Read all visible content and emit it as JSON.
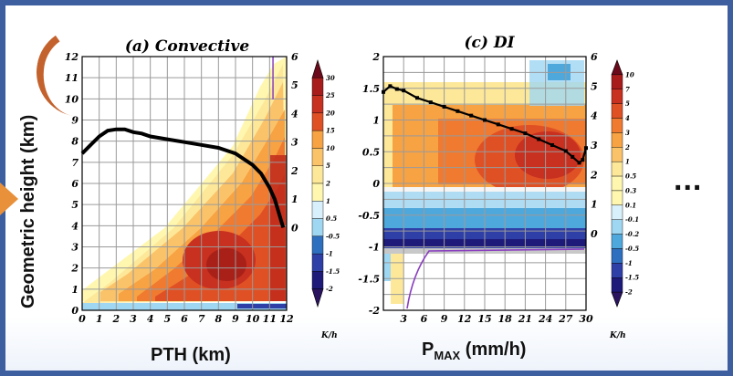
{
  "slide": {
    "y_axis_label": "Geometric height (km)",
    "x_axis_label_a": "PTH (km)",
    "x_axis_label_c_main": "P",
    "x_axis_label_c_sub": "MAX",
    "x_axis_label_c_unit": " (mm/h)",
    "ellipsis": "...",
    "colors": {
      "border": "#3d5fa0",
      "accent_orange": "#e8903a",
      "arc": "#c4622d"
    }
  },
  "chart_data": [
    {
      "type": "heatmap",
      "title": "(a) Convective",
      "x_ticks": [
        "0",
        "1",
        "2",
        "3",
        "4",
        "5",
        "6",
        "7",
        "8",
        "9",
        "10",
        "11",
        "12"
      ],
      "y_ticks_left": [
        "0",
        "1",
        "2",
        "3",
        "4",
        "5",
        "6",
        "7",
        "8",
        "9",
        "10",
        "11",
        "12"
      ],
      "y_ticks_right": [
        "0",
        "1",
        "2",
        "3",
        "4",
        "5",
        "6"
      ],
      "xlim": [
        0,
        12
      ],
      "ylim": [
        0,
        12
      ],
      "y2lim": [
        -2.9,
        6
      ],
      "grid": true,
      "colorbar_ticks": [
        "30",
        "25",
        "20",
        "15",
        "10",
        "5",
        "2",
        "1",
        "0.5",
        "-0.5",
        "-1",
        "-1.5",
        "-2"
      ],
      "colorbar_unit": "K/h",
      "line_series": {
        "axis": "right",
        "x": [
          0,
          0.5,
          1,
          1.5,
          2,
          2.5,
          3,
          3.5,
          4,
          5,
          6,
          7,
          8,
          9,
          10,
          10.5,
          11,
          11.3,
          11.5,
          11.7,
          11.8
        ],
        "y": [
          2.6,
          2.9,
          3.2,
          3.4,
          3.45,
          3.45,
          3.35,
          3.3,
          3.2,
          3.1,
          3.0,
          2.9,
          2.8,
          2.6,
          2.2,
          1.9,
          1.4,
          1.0,
          0.6,
          0.2,
          0.0
        ]
      },
      "purple_line_x": 11.2
    },
    {
      "type": "heatmap",
      "title": "(c) DI",
      "x_ticks": [
        "3",
        "6",
        "9",
        "12",
        "15",
        "18",
        "21",
        "24",
        "27",
        "30"
      ],
      "y_ticks_left": [
        "2",
        "1.5",
        "1",
        "0.5",
        "0",
        "-0.5",
        "-1",
        "-1.5",
        "-2"
      ],
      "y_ticks_right": [
        "6",
        "5",
        "4",
        "3",
        "2",
        "1",
        "0"
      ],
      "xlim": [
        0,
        30
      ],
      "ylim": [
        -2,
        2
      ],
      "y2lim": [
        -2.6,
        6
      ],
      "grid": true,
      "colorbar_ticks": [
        "10",
        "7",
        "5",
        "4",
        "3",
        "2",
        "1",
        "0.5",
        "0.3",
        "0.1",
        "-0.1",
        "-0.2",
        "-0.5",
        "-1",
        "-1.5",
        "-2"
      ],
      "colorbar_unit": "K/h",
      "line_series": {
        "axis": "right",
        "x": [
          0,
          1,
          2,
          3,
          5,
          7,
          9,
          11,
          13,
          15,
          17,
          19,
          21,
          23,
          25,
          27,
          28,
          29,
          29.5,
          30
        ],
        "y": [
          4.8,
          5.0,
          4.9,
          4.85,
          4.6,
          4.45,
          4.3,
          4.15,
          4.0,
          3.85,
          3.7,
          3.55,
          3.4,
          3.2,
          3.0,
          2.8,
          2.6,
          2.4,
          2.5,
          2.9
        ]
      }
    }
  ]
}
